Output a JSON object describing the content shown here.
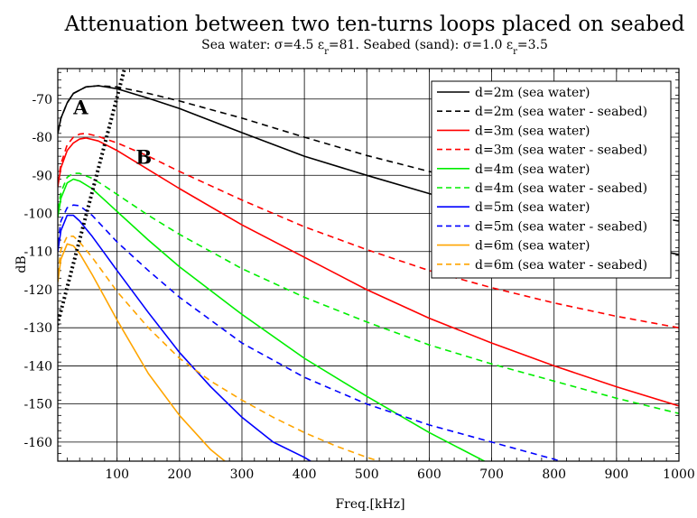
{
  "chart_data": {
    "type": "line",
    "title": "Attenuation between two ten-turns loops placed on seabed",
    "subtitle_parts": [
      "Sea water: σ=4.5 ε",
      "r",
      "=81. Seabed (sand): σ=1.0 ε",
      "r",
      "=3.5"
    ],
    "xlabel": "Freq.[kHz]",
    "ylabel": "dB",
    "xlim": [
      5,
      1000
    ],
    "ylim": [
      -165,
      -62
    ],
    "xticks": [
      100,
      200,
      300,
      400,
      500,
      600,
      700,
      800,
      900,
      1000
    ],
    "yticks": [
      -70,
      -80,
      -90,
      -100,
      -110,
      -120,
      -130,
      -140,
      -150,
      -160
    ],
    "xtick_labels": [
      "100",
      "200",
      "300",
      "400",
      "500",
      "600",
      "700",
      "800",
      "900",
      "1000"
    ],
    "ytick_labels": [
      "-70",
      "-80",
      "-90",
      "-100",
      "-110",
      "-120",
      "-130",
      "-140",
      "-150",
      "-160"
    ],
    "grid": true,
    "legend_position": "top-right",
    "annotations": [
      {
        "text": "A",
        "x": 30,
        "y": -74
      },
      {
        "text": "B",
        "x": 130,
        "y": -87
      }
    ],
    "boundary_line": {
      "style": "dotted",
      "color": "#000000",
      "x": [
        -5,
        112
      ],
      "y": [
        -135,
        -62
      ]
    },
    "series": [
      {
        "name": "d=2m (sea water)",
        "color": "#000000",
        "dash": "solid",
        "x": [
          5,
          10,
          20,
          30,
          50,
          70,
          100,
          150,
          200,
          300,
          400,
          500,
          600,
          700,
          800,
          900,
          1000
        ],
        "y": [
          -79,
          -75,
          -71,
          -68.5,
          -66.8,
          -66.5,
          -67.3,
          -69.8,
          -72.5,
          -78.8,
          -85,
          -90,
          -94.8,
          -99.5,
          -103.5,
          -107.5,
          -110.8
        ]
      },
      {
        "name": "d=2m (sea water - seabed)",
        "color": "#000000",
        "dash": "dashed",
        "x": [
          5,
          10,
          20,
          30,
          50,
          70,
          100,
          150,
          200,
          300,
          400,
          500,
          600,
          700,
          800,
          900,
          1000
        ],
        "y": [
          -79,
          -75,
          -71,
          -68.5,
          -66.8,
          -66.5,
          -66.8,
          -68.5,
          -70.5,
          -75,
          -80,
          -84.8,
          -89,
          -93,
          -96.5,
          -99.5,
          -102
        ]
      },
      {
        "name": "d=3m (sea water)",
        "color": "#ff0000",
        "dash": "solid",
        "x": [
          5,
          10,
          20,
          30,
          40,
          50,
          70,
          100,
          150,
          200,
          300,
          400,
          500,
          600,
          700,
          800,
          900,
          1000
        ],
        "y": [
          -93,
          -88,
          -83.5,
          -81.5,
          -80.5,
          -80.2,
          -81,
          -83.5,
          -88.5,
          -93.5,
          -103,
          -111.5,
          -120,
          -127.5,
          -134,
          -140,
          -145.5,
          -150.5
        ]
      },
      {
        "name": "d=3m (sea water - seabed)",
        "color": "#ff0000",
        "dash": "dashed",
        "x": [
          5,
          10,
          20,
          30,
          40,
          50,
          70,
          100,
          150,
          200,
          300,
          400,
          500,
          600,
          700,
          800,
          900,
          1000
        ],
        "y": [
          -92,
          -87,
          -82,
          -80,
          -79.2,
          -79,
          -79.8,
          -81.5,
          -85,
          -89,
          -96.5,
          -103.5,
          -109.5,
          -115,
          -119.5,
          -123.5,
          -127,
          -130
        ]
      },
      {
        "name": "d=4m (sea water)",
        "color": "#00ee00",
        "dash": "solid",
        "x": [
          5,
          10,
          20,
          30,
          40,
          60,
          80,
          100,
          150,
          200,
          300,
          400,
          500,
          600,
          700
        ],
        "y": [
          -101,
          -96,
          -92,
          -91,
          -91.5,
          -93.5,
          -96.5,
          -99.5,
          -107,
          -114,
          -126.5,
          -138,
          -148,
          -157.5,
          -166
        ]
      },
      {
        "name": "d=4m (sea water - seabed)",
        "color": "#00ee00",
        "dash": "dashed",
        "x": [
          5,
          10,
          20,
          30,
          40,
          60,
          80,
          100,
          150,
          200,
          300,
          400,
          500,
          600,
          700,
          800,
          900,
          1000
        ],
        "y": [
          -99,
          -94.5,
          -90.5,
          -89.5,
          -89.5,
          -90.8,
          -92.8,
          -95,
          -100.5,
          -105.5,
          -114.5,
          -122,
          -128.5,
          -134.5,
          -139.5,
          -144,
          -148.5,
          -152.5
        ]
      },
      {
        "name": "d=5m (sea water)",
        "color": "#0000ff",
        "dash": "solid",
        "x": [
          5,
          10,
          20,
          30,
          40,
          60,
          80,
          100,
          150,
          200,
          250,
          300,
          350,
          400,
          420
        ],
        "y": [
          -110,
          -104.5,
          -100.5,
          -100.5,
          -102,
          -106,
          -110.5,
          -115,
          -126,
          -136.5,
          -145.5,
          -153.5,
          -160,
          -164,
          -166
        ]
      },
      {
        "name": "d=5m (sea water - seabed)",
        "color": "#0000ff",
        "dash": "dashed",
        "x": [
          5,
          10,
          20,
          30,
          40,
          60,
          80,
          100,
          150,
          200,
          300,
          400,
          500,
          600,
          700,
          800,
          810
        ],
        "y": [
          -108,
          -102,
          -98.5,
          -97.8,
          -98,
          -100.5,
          -104,
          -107.5,
          -115,
          -122,
          -134,
          -143,
          -150,
          -155.5,
          -160,
          -164.5,
          -165
        ]
      },
      {
        "name": "d=6m (sea water)",
        "color": "#ffa500",
        "dash": "solid",
        "x": [
          5,
          10,
          20,
          30,
          40,
          60,
          80,
          100,
          150,
          200,
          250,
          280
        ],
        "y": [
          -118,
          -112,
          -108,
          -108.5,
          -110.5,
          -116,
          -122,
          -128,
          -142,
          -153,
          -162,
          -166
        ]
      },
      {
        "name": "d=6m (sea water - seabed)",
        "color": "#ffa500",
        "dash": "dashed",
        "x": [
          5,
          10,
          20,
          30,
          40,
          60,
          80,
          100,
          150,
          200,
          250,
          300,
          350,
          400,
          450,
          500,
          540
        ],
        "y": [
          -116,
          -109.5,
          -106,
          -106,
          -107.5,
          -111.5,
          -116,
          -120.5,
          -130,
          -138,
          -144,
          -149,
          -153.5,
          -157.5,
          -161,
          -164,
          -166
        ]
      }
    ]
  }
}
